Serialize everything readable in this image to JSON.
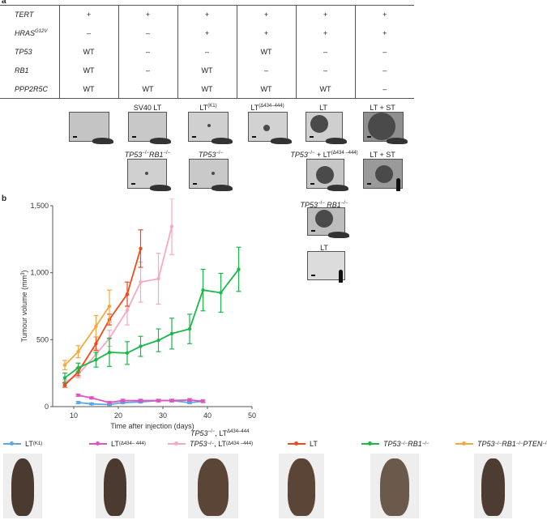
{
  "panel_a": {
    "label": "a",
    "rows": [
      {
        "gene": "TERT",
        "sup": "",
        "values": [
          "+",
          "+",
          "+",
          "+",
          "+",
          "+"
        ]
      },
      {
        "gene": "HRAS",
        "sup": "G12V",
        "values": [
          "–",
          "–",
          "+",
          "+",
          "+",
          "+"
        ]
      },
      {
        "gene": "TP53",
        "sup": "",
        "values": [
          "WT",
          "–",
          "–",
          "WT",
          "–",
          "–"
        ]
      },
      {
        "gene": "RB1",
        "sup": "",
        "values": [
          "WT",
          "–",
          "WT",
          "–",
          "–",
          "–"
        ]
      },
      {
        "gene": "PPP2R5C",
        "sup": "",
        "values": [
          "WT",
          "WT",
          "WT",
          "WT",
          "WT",
          "–"
        ]
      }
    ],
    "image_labels": {
      "sv40lt": "SV40 LT",
      "ltk1": "LT",
      "ltk1_sup": "(K1)",
      "ltd": "LT",
      "ltd_sup": "(Δ434–444)",
      "lt": "LT",
      "ltst": "LT + ST",
      "tp53rb1_a": "TP53",
      "tp53rb1_a_sup": "−/−",
      "tp53rb1_b": "RB1",
      "tp53rb1_b_sup": "−/−",
      "tp53": "TP53",
      "tp53_sup": "−/−",
      "tp53ltd": "TP53",
      "tp53ltd_sup": "−/−",
      "tp53ltd_mid": " + LT",
      "tp53ltd_sup2": "(Δ434 –444)",
      "ltst2": "LT + ST",
      "tp53rb1_2a": "TP53",
      "tp53rb1_2a_sup": "−/−",
      "tp53rb1_2b": " RB1",
      "tp53rb1_2b_sup": "−/−",
      "lt2": "LT"
    }
  },
  "chart_data": {
    "type": "line",
    "panel_label": "b",
    "xlabel": "Time after injection (days)",
    "ylabel": "Tumour volume (mm",
    "ylabel_sup": "3",
    "ylabel_end": ")",
    "xlim": [
      5,
      50
    ],
    "ylim": [
      0,
      1500
    ],
    "xticks": [
      10,
      20,
      30,
      40,
      50
    ],
    "yticks": [
      0,
      500,
      1000,
      1500
    ],
    "ytick_labels": [
      "0",
      "500",
      "1,000",
      "1,500"
    ],
    "grid": false,
    "series": [
      {
        "key": "ltk1",
        "color": "#5aa8e6",
        "x": [
          11,
          14,
          18,
          21,
          25,
          29,
          32,
          36,
          39
        ],
        "y": [
          30,
          20,
          15,
          30,
          35,
          45,
          45,
          30,
          40
        ],
        "err": [
          8,
          6,
          6,
          8,
          8,
          8,
          8,
          8,
          8
        ]
      },
      {
        "key": "ltd",
        "color": "#dd55c0",
        "x": [
          11,
          14,
          18,
          21,
          25,
          29,
          32,
          36,
          39
        ],
        "y": [
          85,
          65,
          30,
          45,
          45,
          45,
          45,
          50,
          40
        ],
        "err": [
          8,
          8,
          8,
          10,
          10,
          10,
          10,
          10,
          10
        ]
      },
      {
        "key": "tp53ltd",
        "color": "#f7a9bd",
        "x": [
          8,
          11,
          15,
          18,
          22,
          25,
          29,
          32
        ],
        "y": [
          180,
          240,
          390,
          510,
          720,
          930,
          955,
          1345
        ],
        "err": [
          20,
          25,
          40,
          60,
          110,
          150,
          190,
          210
        ]
      },
      {
        "key": "lt",
        "color": "#f04a1a",
        "x": [
          8,
          11,
          15,
          18,
          22,
          25
        ],
        "y": [
          160,
          260,
          470,
          650,
          840,
          1180
        ],
        "err": [
          15,
          30,
          50,
          40,
          90,
          140
        ]
      },
      {
        "key": "tp53rb1",
        "color": "#1cb84a",
        "x": [
          8,
          11,
          15,
          18,
          22,
          25,
          29,
          32,
          36,
          39,
          43,
          47
        ],
        "y": [
          215,
          290,
          350,
          405,
          400,
          450,
          495,
          545,
          580,
          870,
          850,
          1025
        ],
        "err": [
          35,
          35,
          55,
          105,
          85,
          75,
          85,
          115,
          110,
          155,
          145,
          165
        ]
      },
      {
        "key": "tp53rb1pten",
        "color": "#f7a640",
        "x": [
          8,
          11,
          15,
          18
        ],
        "y": [
          310,
          410,
          600,
          750
        ],
        "err": [
          35,
          45,
          80,
          120
        ]
      }
    ],
    "legend": {
      "placement": "bottom",
      "ltk1": "LT",
      "ltk1_sup": "(K1)",
      "ltd": "LT",
      "ltd_sup": "(Δ434– 444)",
      "tp53ltd_a": "TP53",
      "tp53ltd_a_sup": "−/−",
      "tp53ltd_b": ", LT",
      "tp53ltd_b_sup": "(Δ434 –444)",
      "tp53ltd_above_a": "TP53",
      "tp53ltd_above_a_sup": "−/−",
      "tp53ltd_above_b": ", LT",
      "tp53ltd_above_b_sup": "Δ434–444",
      "lt": "LT",
      "tp53rb1_a": "TP53",
      "tp53rb1_a_sup": "−/−",
      "tp53rb1_b": " RB1",
      "tp53rb1_b_sup": "−/−",
      "pten_a": "TP53",
      "pten_a_sup": "−/−",
      "pten_b": " RB1",
      "pten_b_sup": "−/−",
      "pten_c": " PTEN",
      "pten_c_sup": "−/−"
    }
  }
}
